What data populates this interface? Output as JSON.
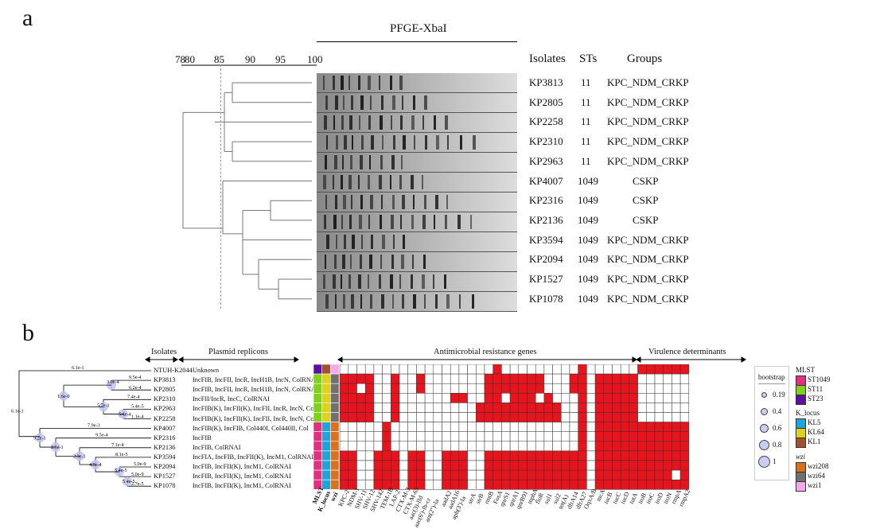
{
  "panel_a": {
    "label": "a",
    "enzyme": "PFGE-XbaI",
    "scale_ticks": [
      "78",
      "80",
      "85",
      "90",
      "95",
      "100"
    ],
    "col_headers": {
      "isolates": "Isolates",
      "sts": "STs",
      "groups": "Groups"
    },
    "rows": [
      {
        "isolate": "KP3813",
        "st": "11",
        "group": "KPC_NDM_CRKP"
      },
      {
        "isolate": "KP2805",
        "st": "11",
        "group": "KPC_NDM_CRKP"
      },
      {
        "isolate": "KP2258",
        "st": "11",
        "group": "KPC_NDM_CRKP"
      },
      {
        "isolate": "KP2310",
        "st": "11",
        "group": "KPC_NDM_CRKP"
      },
      {
        "isolate": "KP2963",
        "st": "11",
        "group": "KPC_NDM_CRKP"
      },
      {
        "isolate": "KP4007",
        "st": "1049",
        "group": "CSKP"
      },
      {
        "isolate": "KP2316",
        "st": "1049",
        "group": "CSKP"
      },
      {
        "isolate": "KP2136",
        "st": "1049",
        "group": "CSKP"
      },
      {
        "isolate": "KP3594",
        "st": "1049",
        "group": "KPC_NDM_CRKP"
      },
      {
        "isolate": "KP2094",
        "st": "1049",
        "group": "KPC_NDM_CRKP"
      },
      {
        "isolate": "KP1527",
        "st": "1049",
        "group": "KPC_NDM_CRKP"
      },
      {
        "isolate": "KP1078",
        "st": "1049",
        "group": "KPC_NDM_CRKP"
      }
    ]
  },
  "panel_b": {
    "label": "b",
    "headers": {
      "isolates": "Isolates",
      "plasmids": "Plasmid replicons",
      "amr": "Antimicrobial resistance genes",
      "virulence": "Virulence determinants"
    },
    "tree_labels": [
      "6.1e-1",
      "9.5e-4",
      "3.0e-4",
      "6.2e-4",
      "1.6e-0",
      "7.4e-4",
      "5.7e-1",
      "5.4e-5",
      "5.4e-4",
      "1.1e-4",
      "6.1e-1",
      "7.9e-3",
      "9.2e-1",
      "9.5e-4",
      "7.1e-4",
      "2.3e-1",
      "8.1e-5",
      "5.0e-9",
      "5.0e-9",
      "4.5e-4",
      "5.4e-5",
      "2.7e-5",
      "5.4e-5"
    ],
    "rows": [
      {
        "isolate": "NTUH-K2044",
        "replicons": "Unknown"
      },
      {
        "isolate": "KP3813",
        "replicons": "IncFIB, IncFII, IncR, IncH1B, IncN, ColRNAI"
      },
      {
        "isolate": "KP2805",
        "replicons": "IncFIB, IncFII, IncR, IncH1B, IncN, ColRNAI"
      },
      {
        "isolate": "KP2310",
        "replicons": "IncFII/IncR, IncC, ColRNAI"
      },
      {
        "isolate": "KP2963",
        "replicons": "IncFIB(K), IncFII(K), IncFII, IncR, IncN, ColRNAI"
      },
      {
        "isolate": "KP2258",
        "replicons": "IncFIB(K), IncFII(K), IncFII, IncR, IncN, ColRNAI"
      },
      {
        "isolate": "KP4007",
        "replicons": "IncFIB(K), IncFIB, Col440I, Col440II, Col"
      },
      {
        "isolate": "KP2316",
        "replicons": "IncFIB"
      },
      {
        "isolate": "KP2136",
        "replicons": "IncFIB, ColRNAI"
      },
      {
        "isolate": "KP3594",
        "replicons": "IncFIA, IncFIB, IncFII(K), IncM1, ColRNAI"
      },
      {
        "isolate": "KP2094",
        "replicons": "IncFIB, IncFII(K), IncM1, ColRNAI"
      },
      {
        "isolate": "KP1527",
        "replicons": "IncFIB, IncFII(K), IncM1, ColRNAI"
      },
      {
        "isolate": "KP1078",
        "replicons": "IncFIB, IncFII(K), IncM1, ColRNAI"
      }
    ],
    "meta_columns": [
      "MLST",
      "K_locus",
      "wzi"
    ],
    "meta_values": [
      [
        "ST23",
        "KL1",
        "wzi1"
      ],
      [
        "ST11",
        "KL64",
        "wzi64"
      ],
      [
        "ST11",
        "KL64",
        "wzi64"
      ],
      [
        "ST11",
        "KL64",
        "wzi64"
      ],
      [
        "ST11",
        "KL64",
        "wzi64"
      ],
      [
        "ST11",
        "KL64",
        "wzi64"
      ],
      [
        "ST1049",
        "KL5",
        "wzi208"
      ],
      [
        "ST1049",
        "KL5",
        "wzi208"
      ],
      [
        "ST1049",
        "KL5",
        "wzi208"
      ],
      [
        "ST1049",
        "KL5",
        "wzi208"
      ],
      [
        "ST1049",
        "KL5",
        "wzi208"
      ],
      [
        "ST1049",
        "KL5",
        "wzi208"
      ],
      [
        "ST1049",
        "KL5",
        "wzi208"
      ]
    ],
    "amr_genes": [
      "KPC-2",
      "NDM-1",
      "SHV-11",
      "SHV-12",
      "SHV-142",
      "TEM-1B",
      "LAP-2",
      "CTX-M-3",
      "CTX-M-65",
      "aac(3)-IId",
      "aac(6')-Ib-cr",
      "ant(2'')-Ia",
      "aadA2",
      "aadA16",
      "aph(3')-Ia",
      "strA",
      "strB",
      "rmtB",
      "FosA",
      "qnrS1",
      "qnrA1",
      "qnrB91",
      "mphA",
      "floR",
      "sul1",
      "sul2",
      "tet(A)",
      "dfrA14",
      "dfrA27",
      "OqxA/B"
    ],
    "vir_genes": [
      "mcA",
      "iucB",
      "iucC",
      "iucD",
      "iutA",
      "iroB",
      "iroC",
      "iroD",
      "iroN",
      "rmpA",
      "rmpA2"
    ],
    "amr_matrix": [
      "000000000000000000100000000010",
      "111100100100000001111111000110",
      "110100100100000001111111000110",
      "111100100000011001101110100010",
      "111100100000000011111111110010",
      "111100100000000011111111110010",
      "000001000000000000000000000010",
      "000001000000000000000000000010",
      "000001000000000000000000000010",
      "110011101100111001111111111110",
      "110011101100111001111111111110",
      "110011101100111001111111111110",
      "110011101100111001111111111110"
    ],
    "vir_matrix": [
      "00000111111",
      "11111000000",
      "11111000000",
      "11111000000",
      "11111000000",
      "11111000000",
      "11111111111",
      "11111111111",
      "11111111111",
      "11111111111",
      "11111111111",
      "11111111101",
      "11111111111"
    ],
    "legend": {
      "bootstrap": {
        "title": "bootstrap",
        "values": [
          "0.19",
          "0.4",
          "0.6",
          "0.8",
          "1"
        ]
      },
      "mlst": {
        "title": "MLST",
        "items": [
          {
            "label": "ST1049",
            "color": "#e0307f"
          },
          {
            "label": "ST11",
            "color": "#7fd11b"
          },
          {
            "label": "ST23",
            "color": "#5b119c"
          }
        ]
      },
      "k_locus": {
        "title": "K_locus",
        "items": [
          {
            "label": "KL5",
            "color": "#1fa4d9"
          },
          {
            "label": "KL64",
            "color": "#e0d21b"
          },
          {
            "label": "KL1",
            "color": "#a0522d"
          }
        ]
      },
      "wzi": {
        "title": "wzi",
        "items": [
          {
            "label": "wzi208",
            "color": "#d9721f"
          },
          {
            "label": "wzi64",
            "color": "#707070"
          },
          {
            "label": "wzi1",
            "color": "#f3a8e8"
          }
        ]
      }
    },
    "cell_color": "#e8141d"
  }
}
